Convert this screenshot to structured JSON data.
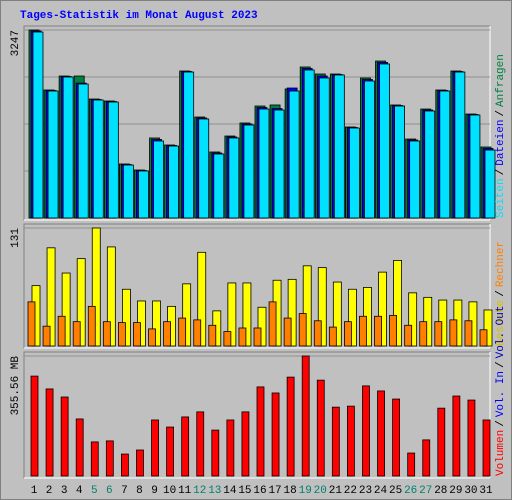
{
  "legend_separator": "/",
  "chart_data": [
    {
      "type": "bar",
      "title": "Tages-Statistik im Monat August 2023",
      "ylim": [
        0,
        3247
      ],
      "yticks": [
        3247
      ],
      "series": [
        {
          "name": "Seiten",
          "color": "#00e0ff",
          "values": [
            3212,
            2193,
            2435,
            2314,
            2038,
            2003,
            915,
            812,
            1330,
            1243,
            2521,
            1710,
            1105,
            1382,
            1606,
            1882,
            1865,
            2193,
            2556,
            2418,
            2470,
            1554,
            2366,
            2660,
            1934,
            1330,
            1848,
            2193,
            2521,
            1779,
            1174
          ]
        },
        {
          "name": "Dateien",
          "color": "#0000ff",
          "values": [
            3230,
            2202,
            2444,
            2330,
            2046,
            2012,
            924,
            820,
            1356,
            1252,
            2530,
            1727,
            1122,
            1399,
            1623,
            1908,
            1890,
            2245,
            2582,
            2452,
            2478,
            1563,
            2392,
            2686,
            1943,
            1347,
            1865,
            2202,
            2530,
            1788,
            1200
          ]
        },
        {
          "name": "Anfragen",
          "color": "#008040",
          "values": [
            3247,
            2211,
            2452,
            2452,
            2055,
            2021,
            933,
            829,
            1382,
            1261,
            2539,
            1744,
            1140,
            1416,
            1641,
            1934,
            1952,
            2228,
            2608,
            2487,
            2487,
            1572,
            2418,
            2711,
            1952,
            1364,
            1882,
            2211,
            2539,
            1796,
            1226
          ]
        }
      ]
    },
    {
      "type": "bar",
      "ylim": [
        0,
        131
      ],
      "yticks": [
        131
      ],
      "series": [
        {
          "name": "Besuche",
          "color": "#ffff00",
          "values": [
            67,
            109,
            81,
            97,
            131,
            110,
            63,
            50,
            50,
            44,
            69,
            104,
            39,
            70,
            70,
            43,
            73,
            74,
            89,
            87,
            71,
            63,
            65,
            82,
            95,
            59,
            54,
            51,
            51,
            49,
            40
          ]
        },
        {
          "name": "Rechner",
          "color": "#ff8000",
          "values": [
            49,
            22,
            33,
            27,
            44,
            27,
            26,
            26,
            19,
            27,
            31,
            29,
            23,
            16,
            20,
            20,
            49,
            31,
            36,
            28,
            21,
            27,
            33,
            33,
            34,
            23,
            27,
            27,
            29,
            28,
            18
          ]
        }
      ]
    },
    {
      "type": "bar",
      "ylim": [
        0,
        355.56
      ],
      "yticks": [
        {
          "value": 355.56,
          "label": "355.56 MB"
        }
      ],
      "categories": [
        "1",
        "2",
        "3",
        "4",
        "5",
        "6",
        "7",
        "8",
        "9",
        "10",
        "11",
        "12",
        "13",
        "14",
        "15",
        "16",
        "17",
        "18",
        "19",
        "20",
        "21",
        "22",
        "23",
        "24",
        "25",
        "26",
        "27",
        "28",
        "29",
        "30",
        "31"
      ],
      "weekend": [
        false,
        false,
        false,
        false,
        true,
        true,
        false,
        false,
        false,
        false,
        false,
        true,
        true,
        false,
        false,
        false,
        false,
        false,
        true,
        true,
        false,
        false,
        false,
        false,
        false,
        true,
        true,
        false,
        false,
        false,
        false
      ],
      "weekend_color": "#00806a",
      "series": [
        {
          "name": "Volumen",
          "color": "#ff0000",
          "values": [
            296,
            258,
            234,
            169,
            101,
            104,
            65,
            77,
            166,
            145,
            175,
            190,
            136,
            166,
            190,
            264,
            246,
            293,
            355.56,
            284,
            204,
            207,
            267,
            252,
            228,
            68,
            107,
            201,
            237,
            225,
            166
          ]
        }
      ],
      "legend_extra": [
        {
          "name": "Vol. In",
          "color": "#0000ff"
        },
        {
          "name": "Vol. Out",
          "color": "#0000c0"
        }
      ]
    }
  ]
}
